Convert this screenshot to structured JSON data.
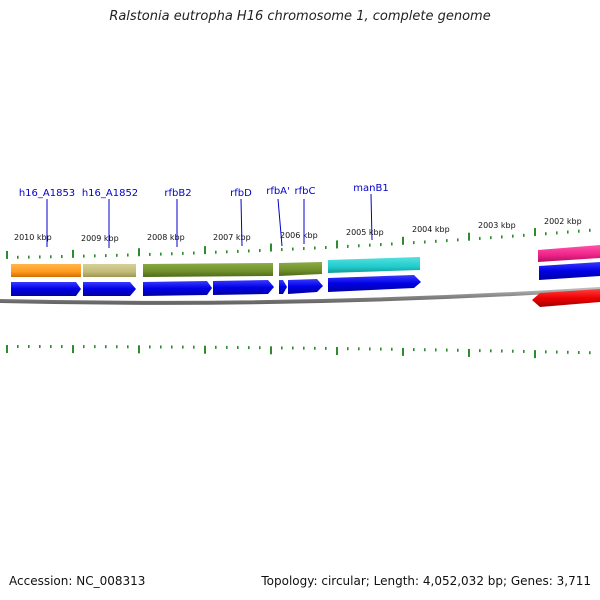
{
  "title": "Ralstonia eutropha H16 chromosome 1, complete genome",
  "footer": {
    "accession": "Accession: NC_008313",
    "topology": "Topology: circular; Length: 4,052,032 bp; Genes: 3,711"
  },
  "kbp_labels": [
    "2010 kbp",
    "2009 kbp",
    "2008 kbp",
    "2007 kbp",
    "2006 kbp",
    "2005 kbp",
    "2004 kbp",
    "2003 kbp",
    "2002 kbp"
  ],
  "gene_labels": [
    "h16_A1853",
    "h16_A1852",
    "rfbB2",
    "rfbD",
    "rfbA'",
    "rfbC",
    "manB1"
  ],
  "colors": {
    "gene_label": "#0000cc",
    "tick": "#2e8b2e",
    "cds_forward": "#0000e0",
    "cds_reverse": "#ee0000",
    "backbone": "#888888",
    "feature_orange": "#ff9a1f",
    "feature_khaki": "#c2bb77",
    "feature_olive": "#6f8f2a",
    "feature_cyan": "#22cccc",
    "feature_pink": "#ee2288"
  }
}
